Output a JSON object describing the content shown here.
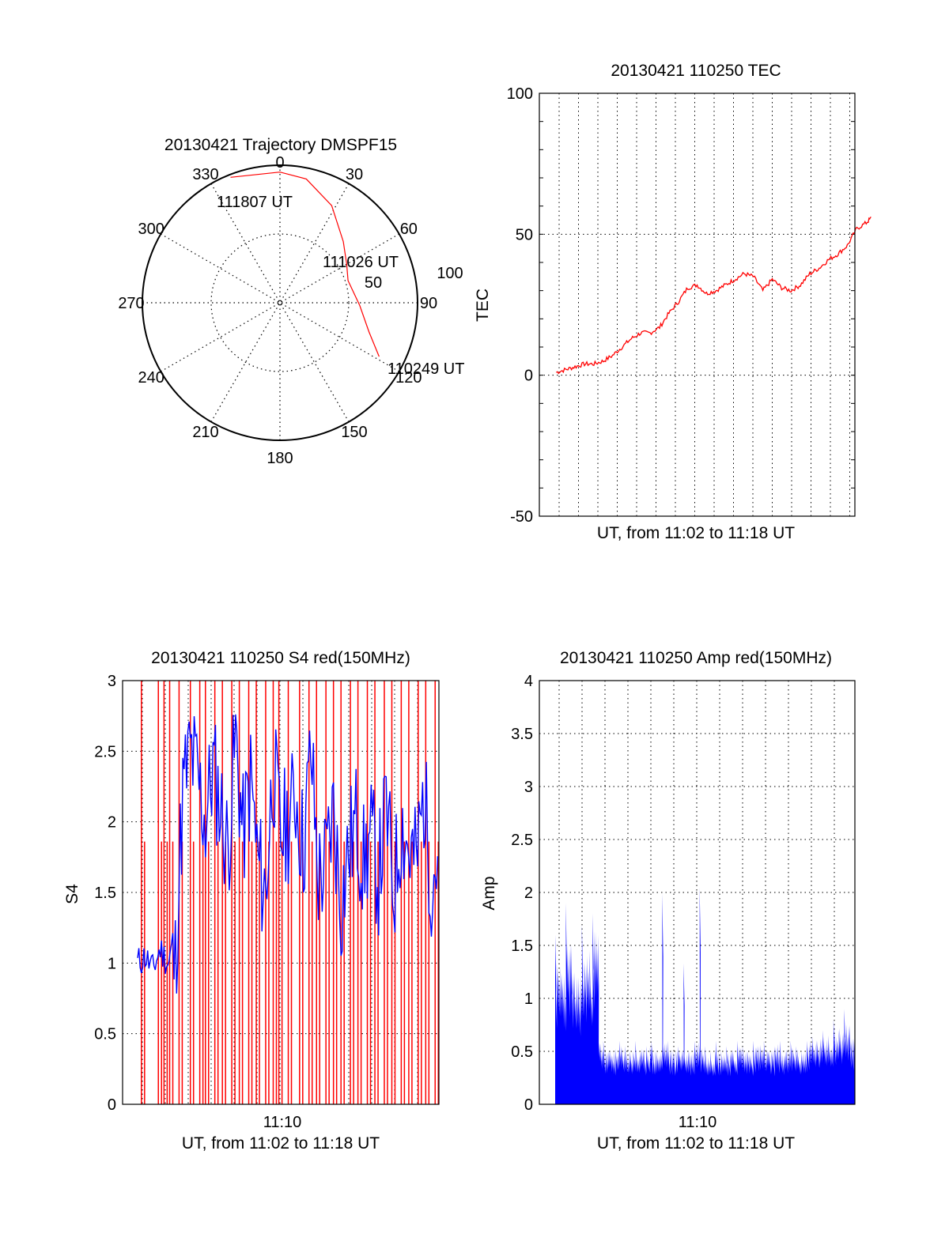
{
  "colors": {
    "red": "#ff0000",
    "blue": "#0000ff",
    "axis": "#000000",
    "grid": "#000000"
  },
  "chart_data": [
    {
      "type": "polar",
      "title": "20130421 Trajectory DMSPF15",
      "angle_labels": [
        "0",
        "30",
        "60",
        "90",
        "120",
        "150",
        "180",
        "210",
        "240",
        "270",
        "300",
        "330"
      ],
      "radius_labels": [
        "50",
        "100"
      ],
      "rlim": [
        0,
        100
      ],
      "grid": true,
      "series": [
        {
          "color": "#ff0000",
          "points": [
            {
              "az": 118.5,
              "r": 82,
              "time": "110249 UT"
            },
            {
              "az": 108,
              "r": 68
            },
            {
              "az": 92,
              "r": 58
            },
            {
              "az": 72,
              "r": 52
            },
            {
              "az": 60,
              "r": 56,
              "time": "111026 UT"
            },
            {
              "az": 46,
              "r": 64
            },
            {
              "az": 28,
              "r": 80
            },
            {
              "az": 12,
              "r": 92
            },
            {
              "az": 0,
              "r": 95
            },
            {
              "az": 338.5,
              "r": 98,
              "time": "111807 UT"
            }
          ]
        }
      ],
      "annotations": [
        "110249 UT",
        "111026 UT",
        "111807 UT"
      ]
    },
    {
      "type": "line",
      "title": "20130421 110250 TEC",
      "xlabel": "UT, from 11:02 to 11:18 UT",
      "ylabel": "TEC",
      "ylim": [
        -50,
        100
      ],
      "yticks": [
        "-50",
        "0",
        "50",
        "100"
      ],
      "xlim_minutes": [
        0,
        16.8
      ],
      "grid": true,
      "series": [
        {
          "color": "#ff0000",
          "x_minutes": [
            0.0,
            0.5,
            1.0,
            1.5,
            2.0,
            2.5,
            3.0,
            3.5,
            4.0,
            4.5,
            5.0,
            5.5,
            6.0,
            6.5,
            7.0,
            7.5,
            8.0,
            8.5,
            9.0,
            9.5,
            10.0,
            10.5,
            11.0,
            11.5,
            12.0,
            12.5,
            13.0,
            13.5,
            14.0,
            14.5,
            15.0,
            15.5,
            16.0,
            16.5,
            16.8
          ],
          "y": [
            1,
            2,
            3,
            4,
            4,
            5,
            7,
            10,
            13,
            15,
            15,
            17,
            22,
            26,
            31,
            32,
            29,
            30,
            32,
            34,
            36,
            35,
            30,
            34,
            31,
            30,
            32,
            36,
            38,
            41,
            43,
            46,
            52,
            54,
            56
          ]
        }
      ]
    },
    {
      "type": "line",
      "title": "20130421 110250 S4 red(150MHz)",
      "xlabel": "UT, from 11:02 to 11:18 UT",
      "ylabel": "S4",
      "ylim": [
        0,
        3
      ],
      "yticks": [
        "0",
        "0.5",
        "1",
        "1.5",
        "2",
        "2.5",
        "3"
      ],
      "xtick_labels": [
        "11:10"
      ],
      "xlim_minutes": [
        0,
        16.8
      ],
      "grid": true,
      "series": [
        {
          "color": "#0000ff",
          "x_minutes": [
            0.8,
            1.2,
            1.6,
            2.0,
            2.4,
            2.8,
            3.2,
            3.6,
            4.0,
            4.4,
            4.8,
            5.2,
            5.6,
            6.0,
            6.4,
            6.8,
            7.2,
            7.6,
            8.0,
            8.4,
            8.8,
            9.2,
            9.6,
            10.0,
            10.4,
            10.8,
            11.2,
            11.6,
            12.0,
            12.4,
            12.8,
            13.2,
            13.6,
            14.0,
            14.4,
            14.8,
            15.2,
            15.6,
            16.0,
            16.4,
            16.8
          ],
          "y": [
            1.0,
            1.05,
            0.95,
            1.1,
            1.0,
            1.0,
            2.2,
            2.5,
            2.3,
            2.0,
            2.4,
            2.1,
            1.8,
            2.6,
            1.9,
            2.3,
            1.7,
            1.5,
            2.4,
            1.9,
            2.0,
            2.2,
            1.8,
            2.5,
            1.6,
            1.7,
            2.1,
            1.4,
            1.8,
            2.0,
            1.7,
            1.9,
            1.6,
            2.1,
            1.5,
            2.0,
            1.8,
            1.7,
            2.2,
            1.6,
            1.8
          ]
        },
        {
          "color": "#ff0000",
          "style": "vertical spikes reaching the top of the axis",
          "x_minutes": [
            1.0,
            1.9,
            2.2,
            2.5,
            3.0,
            3.6,
            4.1,
            4.4,
            4.9,
            5.3,
            5.8,
            6.2,
            6.7,
            7.1,
            7.6,
            8.0,
            8.3,
            8.8,
            9.4,
            9.9,
            10.3,
            10.8,
            11.2,
            11.6,
            12.1,
            12.5,
            13.0,
            13.4,
            13.9,
            14.3,
            14.8,
            15.2,
            15.7,
            16.1,
            16.6
          ]
        }
      ]
    },
    {
      "type": "area",
      "title": "20130421 110250 Amp red(150MHz)",
      "xlabel": "UT, from 11:02 to 11:18 UT",
      "ylabel": "Amp",
      "ylim": [
        0,
        4
      ],
      "yticks": [
        "0",
        "0.5",
        "1",
        "1.5",
        "2",
        "2.5",
        "3",
        "3.5",
        "4"
      ],
      "xtick_labels": [
        "11:10"
      ],
      "xlim_minutes": [
        0,
        16.8
      ],
      "grid": true,
      "series": [
        {
          "color": "#0000ff",
          "x_minutes": [
            0.0,
            0.3,
            0.6,
            0.9,
            1.2,
            1.5,
            1.8,
            2.1,
            2.4,
            2.7,
            3.0,
            3.3,
            3.6,
            3.9,
            4.2,
            4.5,
            4.8,
            5.1,
            5.4,
            5.7,
            6.0,
            6.3,
            6.6,
            6.9,
            7.2,
            7.5,
            7.8,
            8.1,
            8.4,
            8.7,
            9.0,
            9.3,
            9.6,
            9.9,
            10.2,
            10.5,
            10.8,
            11.1,
            11.4,
            11.7,
            12.0,
            12.3,
            12.6,
            12.9,
            13.2,
            13.5,
            13.8,
            14.1,
            14.4,
            14.7,
            15.0,
            15.3,
            15.6,
            15.9,
            16.2,
            16.5,
            16.8
          ],
          "y": [
            1.6,
            1.3,
            1.9,
            1.5,
            1.2,
            1.7,
            1.4,
            1.8,
            1.6,
            0.6,
            0.5,
            0.5,
            0.6,
            0.55,
            0.5,
            0.6,
            0.5,
            0.55,
            0.6,
            0.5,
            1.99,
            0.6,
            0.5,
            0.55,
            1.33,
            0.5,
            0.6,
            2.05,
            0.55,
            0.5,
            0.6,
            0.5,
            0.55,
            0.5,
            0.6,
            0.55,
            0.5,
            0.6,
            0.55,
            0.6,
            0.5,
            0.55,
            0.6,
            0.5,
            0.6,
            0.55,
            0.5,
            0.6,
            0.65,
            0.6,
            0.7,
            0.65,
            0.8,
            0.7,
            0.9,
            0.75,
            0.6
          ]
        }
      ]
    }
  ]
}
